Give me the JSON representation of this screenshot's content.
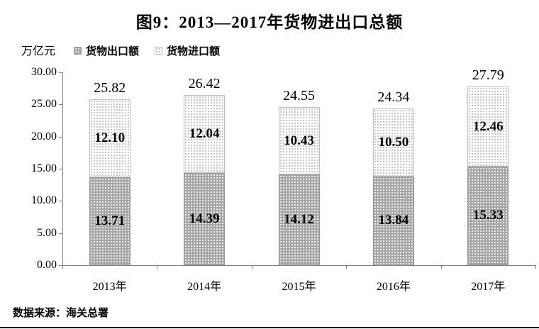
{
  "title": "图9：2013—2017年货物进出口总额",
  "unit_label": "万亿元",
  "legend": {
    "items": [
      {
        "label": "货物出口额",
        "swatch": "export-dark-dotted-swatch"
      },
      {
        "label": "货物进口额",
        "swatch": "import-light-dotted-swatch"
      }
    ]
  },
  "source_note": "数据来源：海关总署",
  "colors": {
    "export_fill": "#a6a6a6",
    "export_dot": "#ffffff",
    "import_fill": "#ffffff",
    "import_dot": "#b3b3b3",
    "axis": "#808080",
    "bar_border": "#bfbfbf",
    "text": "#000000",
    "background": "#ffffff"
  },
  "chart_data": {
    "type": "bar",
    "stacked": true,
    "title": "图9：2013—2017年货物进出口总额",
    "ylabel": "万亿元",
    "xlabel": "",
    "categories": [
      "2013年",
      "2014年",
      "2015年",
      "2016年",
      "2017年"
    ],
    "series": [
      {
        "name": "货物出口额",
        "values": [
          13.71,
          14.39,
          14.12,
          13.84,
          15.33
        ]
      },
      {
        "name": "货物进口额",
        "values": [
          12.1,
          12.04,
          10.43,
          10.5,
          12.46
        ]
      }
    ],
    "totals": [
      25.82,
      26.42,
      24.55,
      24.34,
      27.79
    ],
    "ylim": [
      0,
      30
    ],
    "ytick_step": 5,
    "ytick_labels": [
      "0.00",
      "5.00",
      "10.00",
      "15.00",
      "20.00",
      "25.00",
      "30.00"
    ],
    "grid": false,
    "legend_position": "top-left",
    "value_label_decimals": 2
  }
}
